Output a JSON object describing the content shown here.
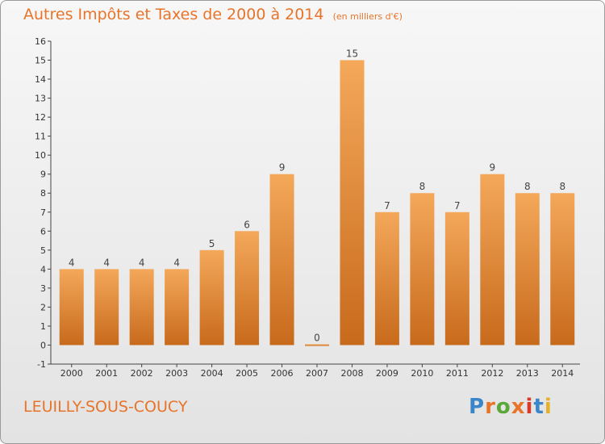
{
  "header": {
    "title": "Autres Impôts et Taxes de 2000 à 2014",
    "subtitle": "(en milliers d'€)"
  },
  "footer": {
    "location": "LEUILLY-SOUS-COUCY",
    "logo": "Proxiti",
    "logo_colors": [
      "#3a86c8",
      "#e8742a",
      "#5aa83a",
      "#e8742a",
      "#d83a2a",
      "#3a86c8",
      "#e8b02a"
    ]
  },
  "colors": {
    "accent": "#e8742a",
    "bar_top": "#f4a85a",
    "bar_bottom": "#c86a1c"
  },
  "chart_data": {
    "type": "bar",
    "title": "Autres Impôts et Taxes de 2000 à 2014",
    "subtitle": "(en milliers d'€)",
    "xlabel": "",
    "ylabel": "",
    "categories": [
      "2000",
      "2001",
      "2002",
      "2003",
      "2004",
      "2005",
      "2006",
      "2007",
      "2008",
      "2009",
      "2010",
      "2011",
      "2012",
      "2013",
      "2014"
    ],
    "values": [
      4,
      4,
      4,
      4,
      5,
      6,
      9,
      0,
      15,
      7,
      8,
      7,
      9,
      8,
      8
    ],
    "ylim": [
      -1,
      16
    ],
    "yticks": [
      -1,
      0,
      1,
      2,
      3,
      4,
      5,
      6,
      7,
      8,
      9,
      10,
      11,
      12,
      13,
      14,
      15,
      16
    ],
    "grid": false,
    "legend": "none"
  }
}
